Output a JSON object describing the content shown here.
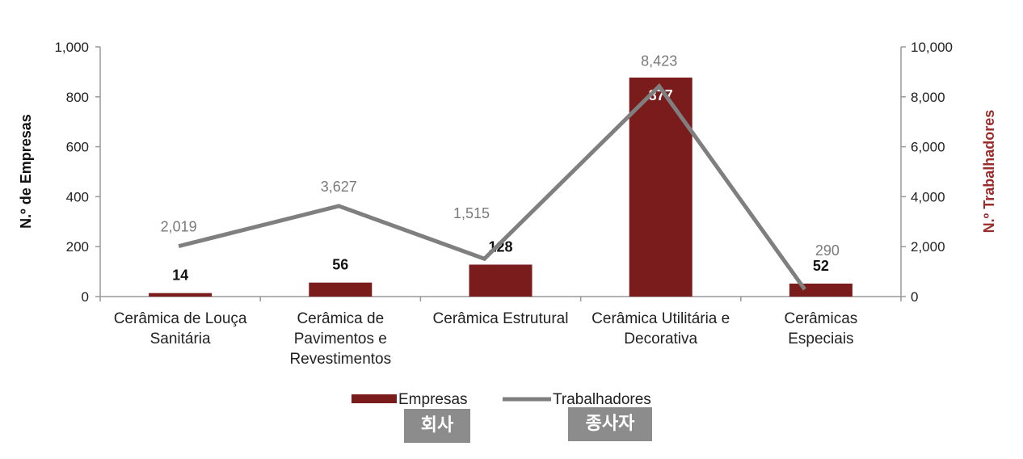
{
  "chart_data": {
    "type": "bar",
    "categories": [
      [
        "Cerâmica de Louça",
        "Sanitária"
      ],
      [
        "Cerâmica de",
        "Pavimentos e",
        "Revestimentos"
      ],
      [
        "Cerâmica Estrutural"
      ],
      [
        "Cerâmica Utilitária e",
        "Decorativa"
      ],
      [
        "Cerâmicas",
        "Especiais"
      ]
    ],
    "series": [
      {
        "name": "Empresas",
        "type": "bar",
        "axis": "left",
        "color": "#7b1c1c",
        "values": [
          14,
          56,
          128,
          877,
          52
        ],
        "labels": [
          "14",
          "56",
          "128",
          "877",
          "52"
        ]
      },
      {
        "name": "Trabalhadores",
        "type": "line",
        "axis": "right",
        "color": "#7f7f7f",
        "values": [
          2019,
          3627,
          1515,
          8423,
          290
        ],
        "labels": [
          "2,019",
          "3,627",
          "1,515",
          "8,423",
          "290"
        ]
      }
    ],
    "ylabel_left": "N.º de Empresas",
    "ylabel_right": "N.º Trabalhadores",
    "ylim_left": [
      0,
      1000
    ],
    "ylim_right": [
      0,
      10000
    ],
    "yticks_left": [
      "0",
      "200",
      "400",
      "600",
      "800",
      "1,000"
    ],
    "yticks_right": [
      "0",
      "2,000",
      "4,000",
      "6,000",
      "8,000",
      "10,000"
    ],
    "grid": false,
    "legend_position": "bottom"
  },
  "annotations": {
    "empresas_tag": "회사",
    "trabalhadores_tag": "종사자"
  }
}
